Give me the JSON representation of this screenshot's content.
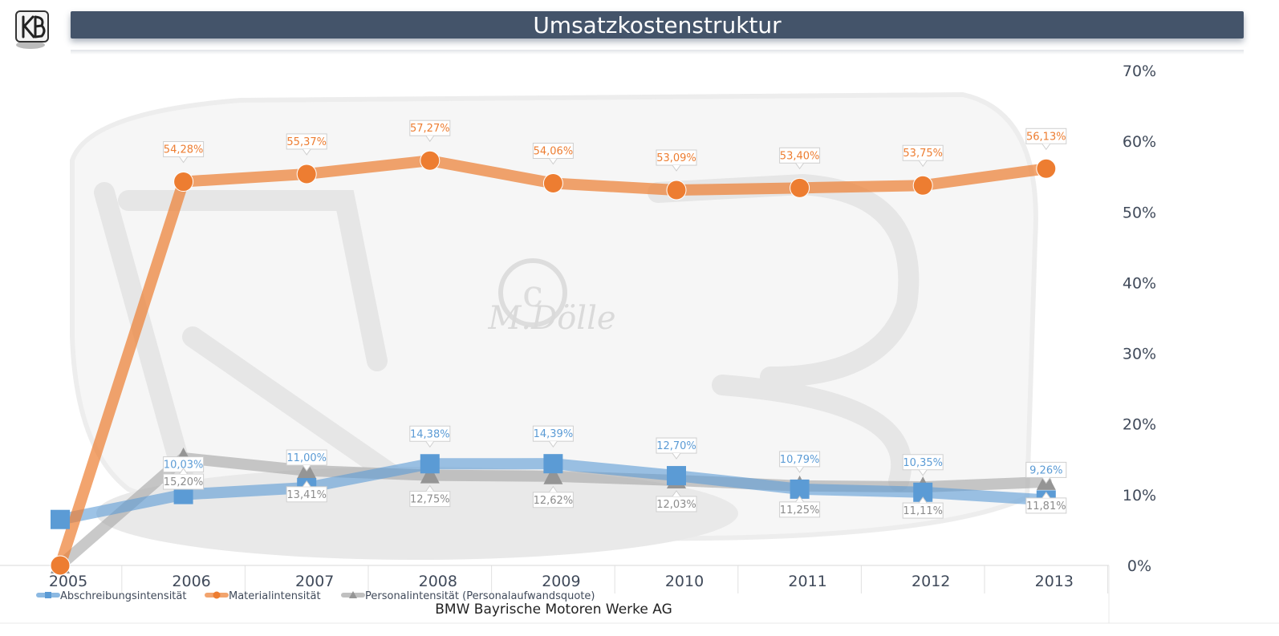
{
  "title": "Umsatzkostenstruktur",
  "watermark": "M.Dölle",
  "chart_data": {
    "type": "line",
    "title": "Umsatzkostenstruktur",
    "xlabel": "BMW Bayrische Motoren Werke AG",
    "ylabel": "",
    "x": [
      "2005",
      "2006",
      "2007",
      "2008",
      "2009",
      "2010",
      "2011",
      "2012",
      "2013"
    ],
    "ylim": [
      0,
      0.7
    ],
    "y_ticks": [
      "0%",
      "10%",
      "20%",
      "30%",
      "40%",
      "50%",
      "60%",
      "70%"
    ],
    "y_axis_position": "right",
    "grid": false,
    "legend_position": "bottom-left",
    "series": [
      {
        "name": "Abschreibungsintensität",
        "color": "#5b9bd5",
        "marker": "square",
        "values": [
          0.065,
          0.1003,
          0.11,
          0.1438,
          0.1439,
          0.127,
          0.1079,
          0.1035,
          0.0926
        ],
        "labels": [
          "",
          "10,03%",
          "11,00%",
          "14,38%",
          "14,39%",
          "12,70%",
          "10,79%",
          "10,35%",
          "9,26%"
        ]
      },
      {
        "name": "Materialintensität",
        "color": "#ed7d31",
        "marker": "circle",
        "values": [
          0.0,
          0.5428,
          0.5537,
          0.5727,
          0.5406,
          0.5309,
          0.534,
          0.5375,
          0.5613
        ],
        "labels": [
          "",
          "54,28%",
          "55,37%",
          "57,27%",
          "54,06%",
          "53,09%",
          "53,40%",
          "53,75%",
          "56,13%"
        ]
      },
      {
        "name": "Personalintensität (Personalaufwandsquote)",
        "color": "#a5a5a5",
        "marker": "triangle",
        "values": [
          0.0,
          0.152,
          0.1341,
          0.1275,
          0.1262,
          0.1203,
          0.1125,
          0.1111,
          0.1181
        ],
        "labels": [
          "",
          "15,20%",
          "13,41%",
          "12,75%",
          "12,62%",
          "12,03%",
          "11,25%",
          "11,11%",
          "11,81%"
        ]
      }
    ]
  }
}
